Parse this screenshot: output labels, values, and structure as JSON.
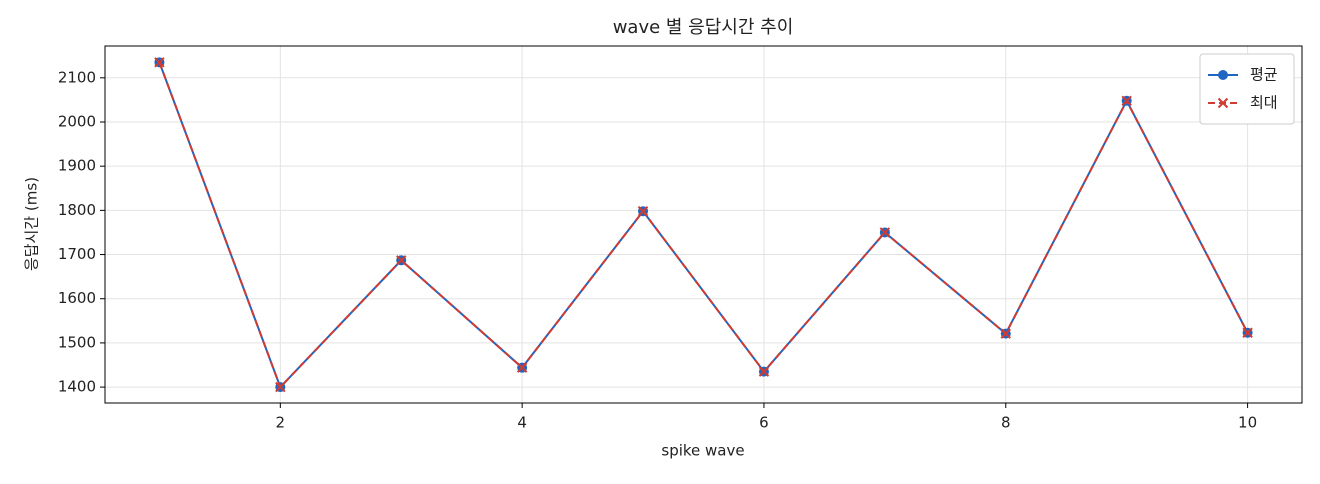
{
  "chart_data": {
    "type": "line",
    "title": "wave 별 응답시간 추이",
    "xlabel": "spike wave",
    "ylabel": "응답시간 (ms)",
    "x": [
      1,
      2,
      3,
      4,
      5,
      6,
      7,
      8,
      9,
      10
    ],
    "series": [
      {
        "name": "평균",
        "color": "#1f66c2",
        "marker": "o",
        "linestyle": "solid",
        "values": [
          2135,
          1400,
          1687,
          1444,
          1798,
          1435,
          1750,
          1521,
          2048,
          1523
        ]
      },
      {
        "name": "최대",
        "color": "#d03b32",
        "marker": "x",
        "linestyle": "dashed",
        "values": [
          2135,
          1400,
          1687,
          1444,
          1798,
          1435,
          1750,
          1521,
          2048,
          1523
        ]
      }
    ],
    "xlim": [
      0.55,
      10.45
    ],
    "xticks": [
      2,
      4,
      6,
      8,
      10
    ],
    "ylim": [
      1364,
      2172
    ],
    "yticks": [
      1400,
      1500,
      1600,
      1700,
      1800,
      1900,
      2000,
      2100
    ],
    "grid": true,
    "legend": "upper right"
  }
}
